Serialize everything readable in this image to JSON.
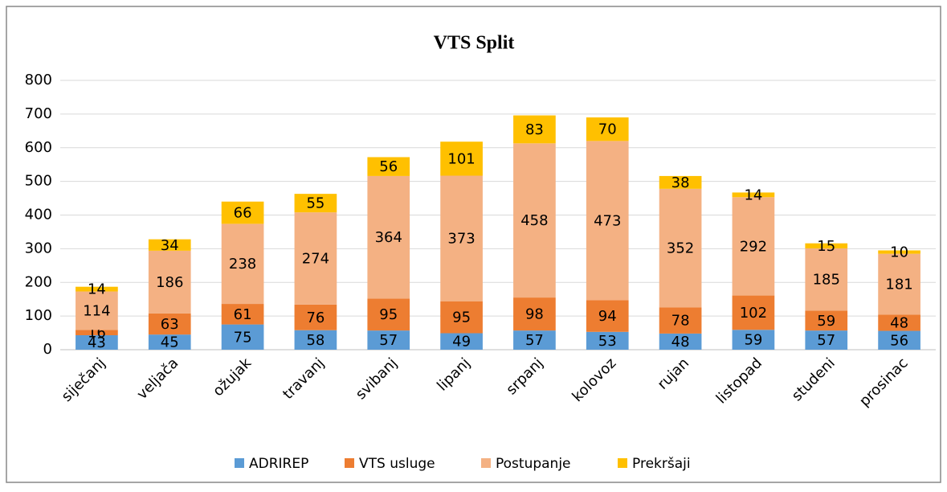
{
  "chart_data": {
    "type": "stacked_bar",
    "title": "VTS Split",
    "categories": [
      "siječanj",
      "veljača",
      "ožujak",
      "travanj",
      "svibanj",
      "lipanj",
      "srpanj",
      "kolovoz",
      "rujan",
      "listopad",
      "studeni",
      "prosinac"
    ],
    "series": [
      {
        "name": "ADRIREP",
        "color": "#5b9bd5",
        "values": [
          43,
          45,
          75,
          58,
          57,
          49,
          57,
          53,
          48,
          59,
          57,
          56
        ]
      },
      {
        "name": "VTS usluge",
        "color": "#ed7d31",
        "values": [
          16,
          63,
          61,
          76,
          95,
          95,
          98,
          94,
          78,
          102,
          59,
          48
        ]
      },
      {
        "name": "Postupanje",
        "color": "#f4b183",
        "values": [
          114,
          186,
          238,
          274,
          364,
          373,
          458,
          473,
          352,
          292,
          185,
          181
        ]
      },
      {
        "name": "Prekršaji",
        "color": "#ffc000",
        "values": [
          14,
          34,
          66,
          55,
          56,
          101,
          83,
          70,
          38,
          14,
          15,
          10
        ]
      }
    ],
    "ylim": [
      0,
      800
    ],
    "yticks": [
      0,
      100,
      200,
      300,
      400,
      500,
      600,
      700,
      800
    ],
    "grid": true,
    "legend": "bottom"
  }
}
